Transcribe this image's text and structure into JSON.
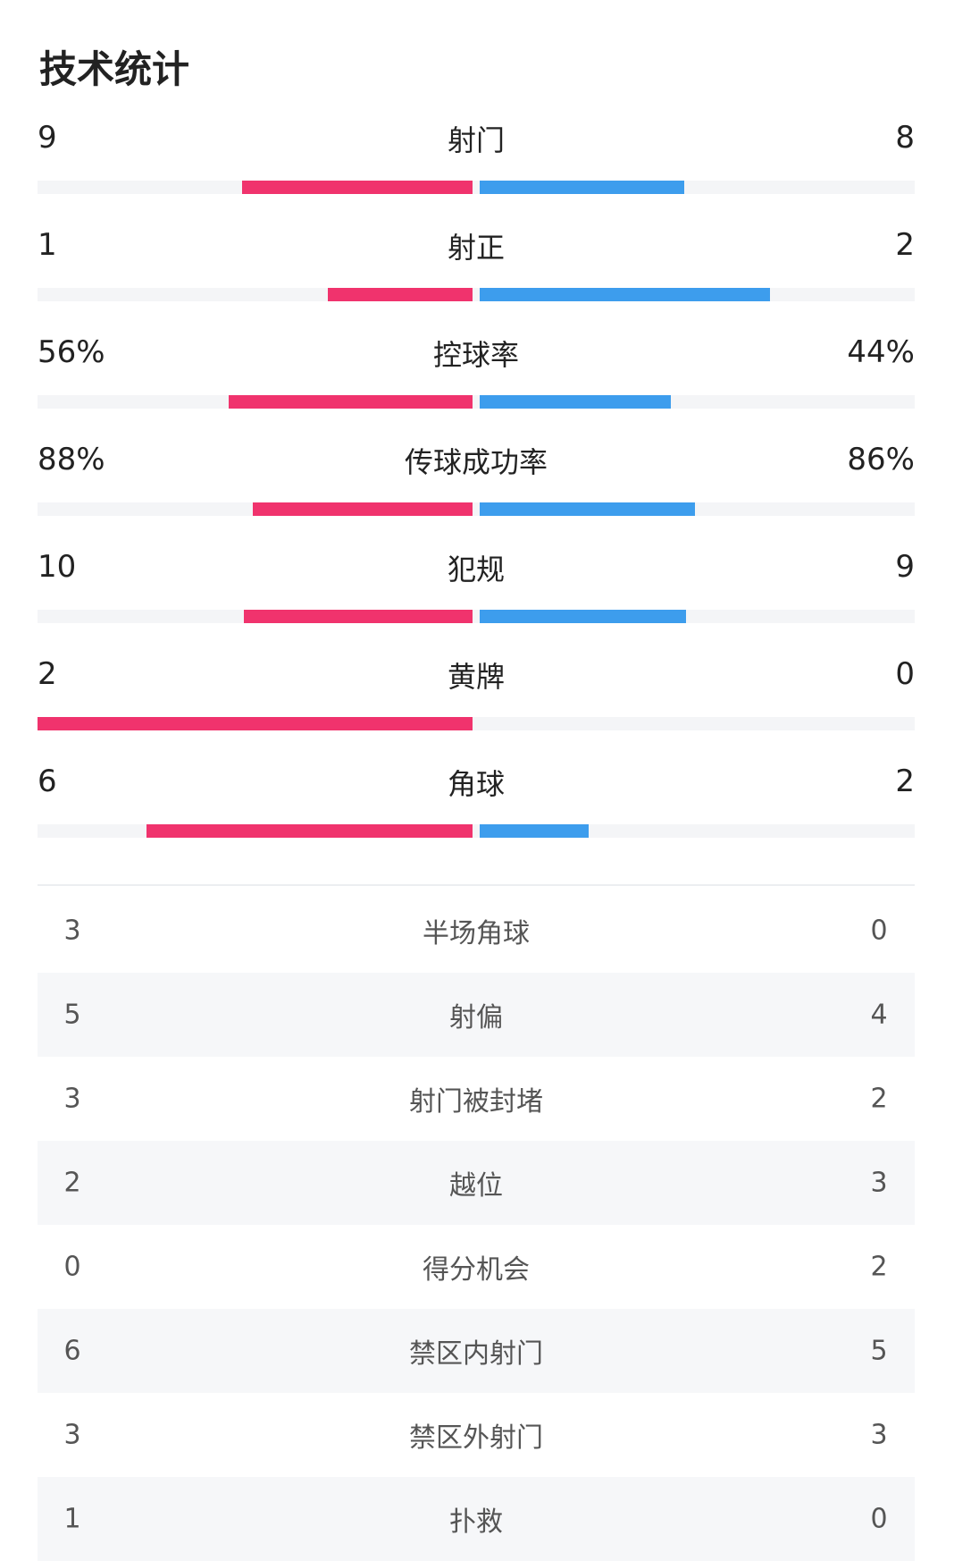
{
  "title": "技术统计",
  "bar_stats": [
    {
      "label": "射门",
      "values": [
        9,
        8
      ]
    },
    {
      "label": "射正",
      "values": [
        1,
        2
      ]
    },
    {
      "label": "控球率",
      "values": [
        56,
        44
      ],
      "value_labels": [
        "56%",
        "44%"
      ]
    },
    {
      "label": "传球成功率",
      "values": [
        88,
        86
      ],
      "value_labels": [
        "88%",
        "86%"
      ]
    },
    {
      "label": "犯规",
      "values": [
        10,
        9
      ]
    },
    {
      "label": "黄牌",
      "values": [
        2,
        0
      ]
    },
    {
      "label": "角球",
      "values": [
        6,
        2
      ]
    }
  ],
  "table": {
    "rows": [
      [
        "3",
        "半场角球",
        "0"
      ],
      [
        "5",
        "射偏",
        "4"
      ],
      [
        "3",
        "射门被封堵",
        "2"
      ],
      [
        "2",
        "越位",
        "3"
      ],
      [
        "0",
        "得分机会",
        "2"
      ],
      [
        "6",
        "禁区内射门",
        "5"
      ],
      [
        "3",
        "禁区外射门",
        "3"
      ],
      [
        "1",
        "扑救",
        "0"
      ]
    ]
  }
}
